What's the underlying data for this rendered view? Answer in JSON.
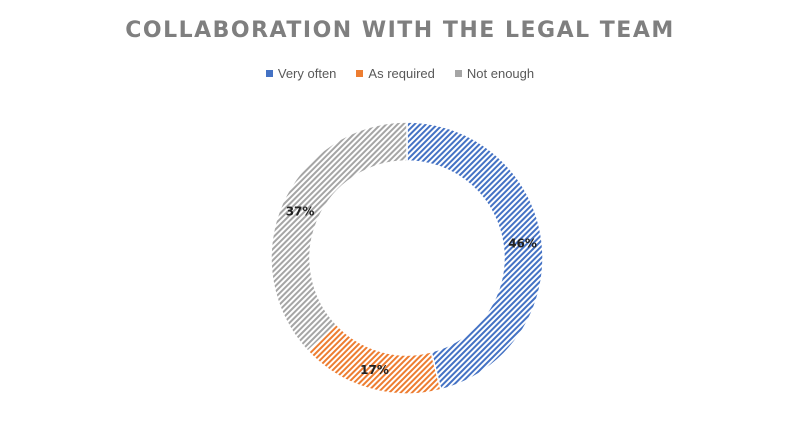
{
  "chart_data": {
    "type": "pie",
    "title": "COLLABORATION WITH THE LEGAL TEAM",
    "legend_position": "top",
    "categories": [
      "Very often",
      "As required",
      "Not enough"
    ],
    "values": [
      46,
      17,
      37
    ],
    "labels": [
      "46%",
      "17%",
      "37%"
    ],
    "colors": [
      "#4472c4",
      "#ed7d31",
      "#a5a5a5"
    ],
    "hole": true
  }
}
